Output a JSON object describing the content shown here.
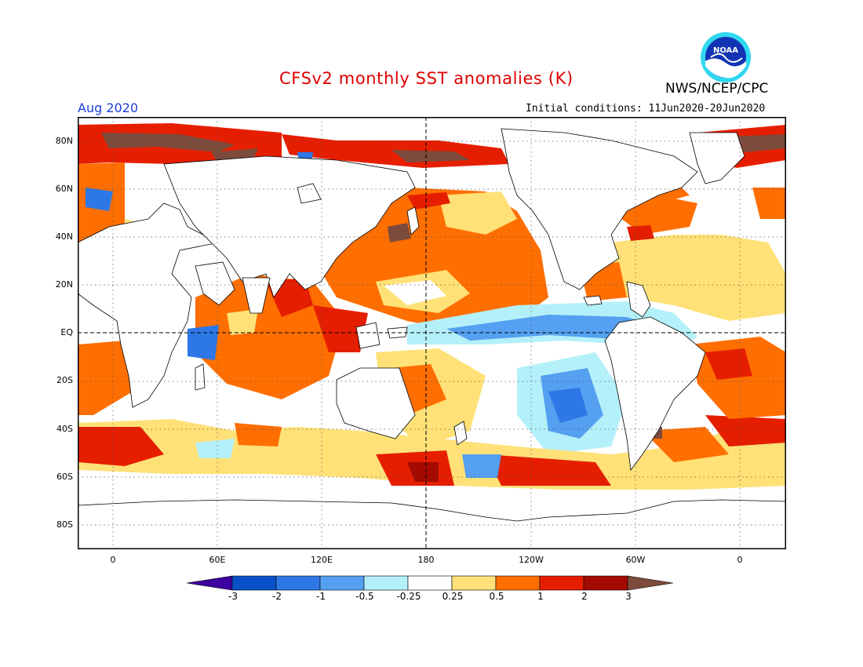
{
  "header": {
    "title": "CFSv2 monthly SST anomalies (K)",
    "org": "NWS/NCEP/CPC",
    "month": "Aug 2020",
    "initial_conditions": "Initial conditions: 11Jun2020-20Jun2020",
    "logo_text": "NOAA"
  },
  "map": {
    "lat_labels": [
      "80N",
      "60N",
      "40N",
      "20N",
      "EQ",
      "20S",
      "40S",
      "60S",
      "80S"
    ],
    "lon_labels": [
      "0",
      "60E",
      "120E",
      "180",
      "120W",
      "60W",
      "0"
    ]
  },
  "colorbar": {
    "labels": [
      "-3",
      "-2",
      "-1",
      "-0.5",
      "-0.25",
      "0.25",
      "0.5",
      "1",
      "2",
      "3"
    ],
    "colors": [
      "#3c00a0",
      "#0a50c8",
      "#2d78e6",
      "#55a0f0",
      "#b4f0fa",
      "#ffffff",
      "#ffe178",
      "#ff6e00",
      "#e61e00",
      "#a50a00",
      "#7d4b3c"
    ]
  }
}
